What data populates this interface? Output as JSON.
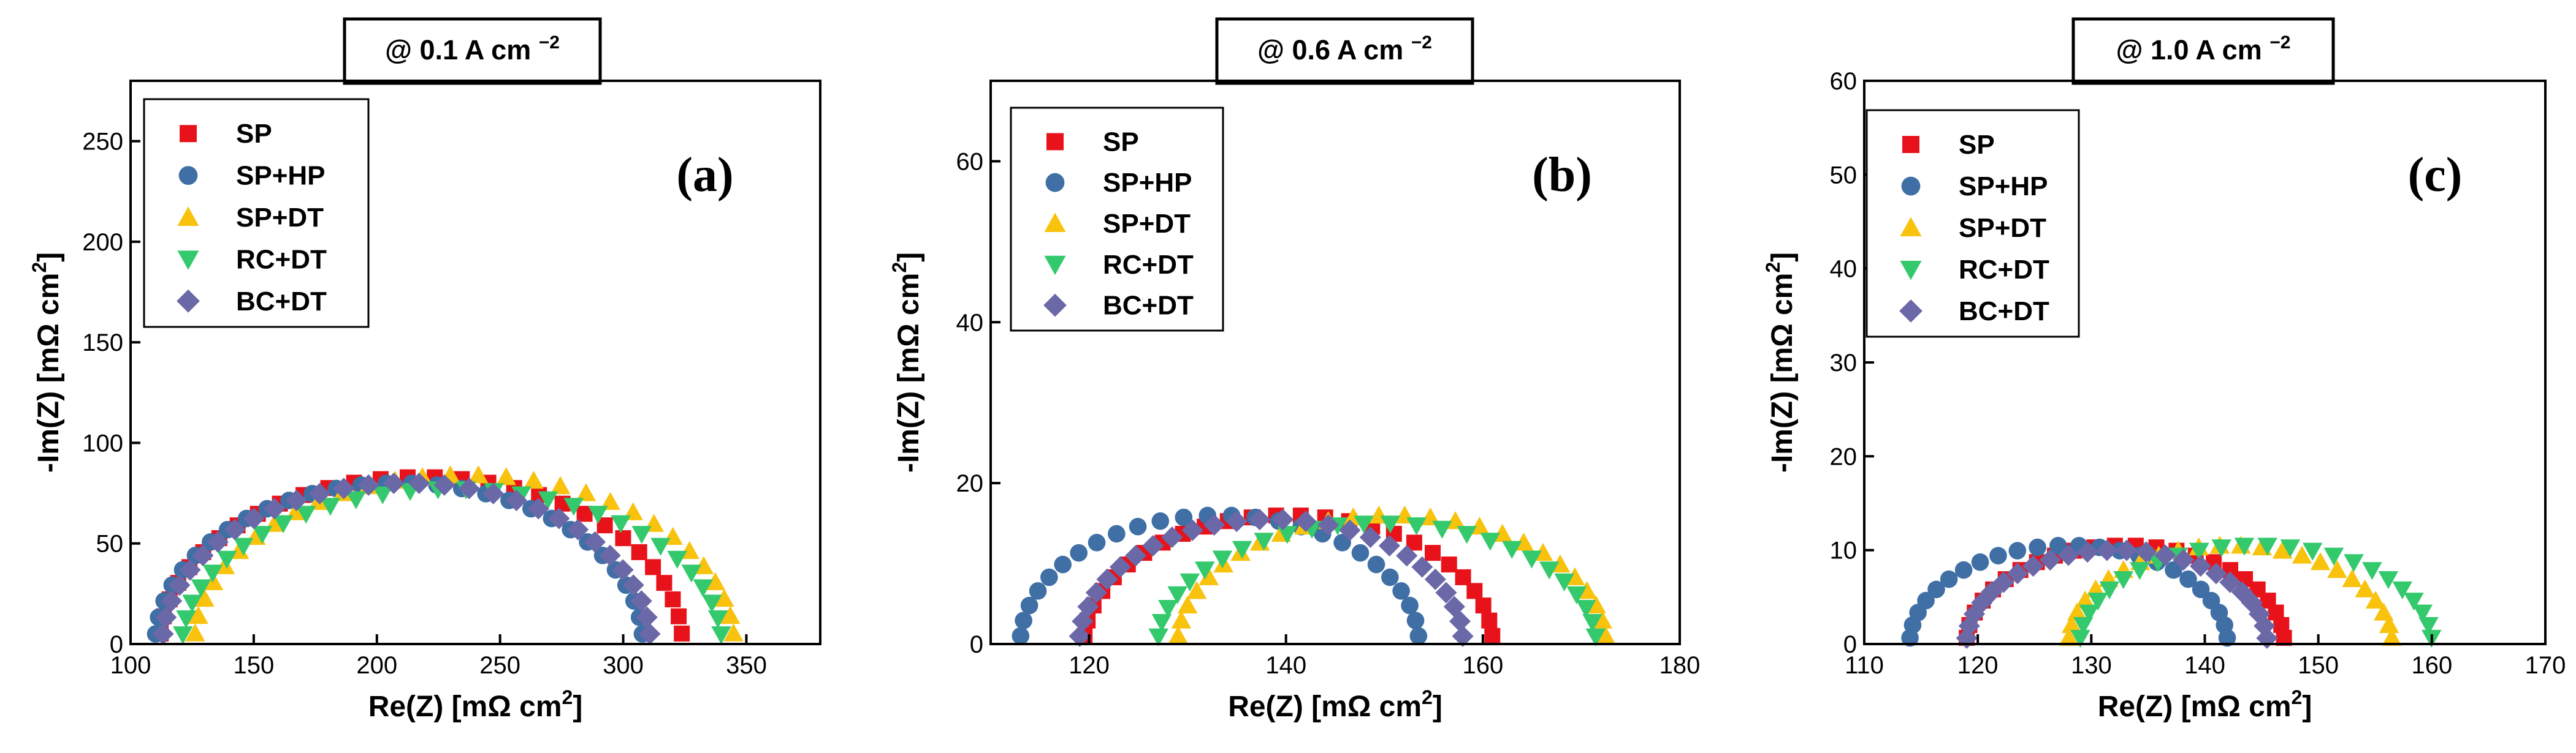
{
  "series_styles": [
    {
      "name": "SP",
      "color": "#e8121b",
      "marker": "square"
    },
    {
      "name": "SP+HP",
      "color": "#3f6fa5",
      "marker": "circle"
    },
    {
      "name": "SP+DT",
      "color": "#f8c20d",
      "marker": "triangle-up"
    },
    {
      "name": "RC+DT",
      "color": "#33c96c",
      "marker": "triangle-down"
    },
    {
      "name": "BC+DT",
      "color": "#6b68a8",
      "marker": "diamond"
    }
  ],
  "chart_data": [
    {
      "type": "scatter",
      "title": "@ 0.1 A cm",
      "title_sup": "−2",
      "panel_label": "(a)",
      "xlabel": "Re(Z) [mΩ cm",
      "xlabel_sup": "2",
      "xlabel_end": "]",
      "ylabel": "-Im(Z) [mΩ cm",
      "ylabel_sup": "2",
      "ylabel_end": "]",
      "xlim": [
        100,
        380
      ],
      "ylim": [
        0,
        280
      ],
      "xticks": [
        100,
        150,
        200,
        250,
        300,
        350
      ],
      "yticks": [
        0,
        50,
        100,
        150,
        200,
        250
      ],
      "legend": [
        "SP",
        "SP+HP",
        "SP+DT",
        "RC+DT",
        "BC+DT"
      ],
      "series": [
        {
          "name": "SP",
          "x0": 112,
          "x1": 324,
          "peak": 83,
          "n": 30
        },
        {
          "name": "SP+HP",
          "x0": 110,
          "x1": 308,
          "peak": 80,
          "n": 30
        },
        {
          "name": "SP+DT",
          "x0": 126,
          "x1": 345,
          "peak": 84,
          "n": 30
        },
        {
          "name": "RC+DT",
          "x0": 121,
          "x1": 340,
          "peak": 77,
          "n": 30
        },
        {
          "name": "BC+DT",
          "x0": 113,
          "x1": 311,
          "peak": 80,
          "n": 30
        }
      ]
    },
    {
      "type": "scatter",
      "title": "@ 0.6 A cm",
      "title_sup": "−2",
      "panel_label": "(b)",
      "xlabel": "Re(Z) [mΩ cm",
      "xlabel_sup": "2",
      "xlabel_end": "]",
      "ylabel": "-Im(Z) [mΩ cm",
      "ylabel_sup": "2",
      "ylabel_end": "]",
      "xlim": [
        110,
        180
      ],
      "ylim": [
        0,
        70
      ],
      "xticks": [
        120,
        140,
        160,
        180
      ],
      "yticks": [
        0,
        20,
        40,
        60
      ],
      "legend": [
        "SP",
        "SP+HP",
        "SP+DT",
        "RC+DT",
        "BC+DT"
      ],
      "series": [
        {
          "name": "SP",
          "x0": 119.5,
          "x1": 161,
          "peak": 16,
          "n": 26
        },
        {
          "name": "SP+HP",
          "x0": 113,
          "x1": 153.5,
          "peak": 16,
          "n": 26
        },
        {
          "name": "SP+DT",
          "x0": 129,
          "x1": 172.5,
          "peak": 16,
          "n": 26
        },
        {
          "name": "RC+DT",
          "x0": 127,
          "x1": 171.5,
          "peak": 15,
          "n": 26
        },
        {
          "name": "BC+DT",
          "x0": 119,
          "x1": 158,
          "peak": 15.5,
          "n": 26
        }
      ]
    },
    {
      "type": "scatter",
      "title": "@ 1.0 A cm",
      "title_sup": "−2",
      "panel_label": "(c)",
      "xlabel": "Re(Z) [mΩ cm",
      "xlabel_sup": "2",
      "xlabel_end": "]",
      "ylabel": "-Im(Z) [mΩ cm",
      "ylabel_sup": "2",
      "ylabel_end": "]",
      "xlim": [
        110,
        170
      ],
      "ylim": [
        0,
        60
      ],
      "xticks": [
        110,
        120,
        130,
        140,
        150,
        160,
        170
      ],
      "yticks": [
        0,
        10,
        20,
        30,
        40,
        50,
        60
      ],
      "legend": [
        "SP",
        "SP+HP",
        "SP+DT",
        "RC+DT",
        "BC+DT"
      ],
      "series": [
        {
          "name": "SP",
          "x0": 119,
          "x1": 147,
          "peak": 10.5,
          "n": 24
        },
        {
          "name": "SP+HP",
          "x0": 114,
          "x1": 142,
          "peak": 10.5,
          "n": 24
        },
        {
          "name": "SP+DT",
          "x0": 128,
          "x1": 156.5,
          "peak": 10.5,
          "n": 24
        },
        {
          "name": "RC+DT",
          "x0": 129,
          "x1": 160,
          "peak": 10.5,
          "n": 24
        },
        {
          "name": "BC+DT",
          "x0": 119,
          "x1": 145.5,
          "peak": 10,
          "n": 24
        }
      ]
    }
  ]
}
